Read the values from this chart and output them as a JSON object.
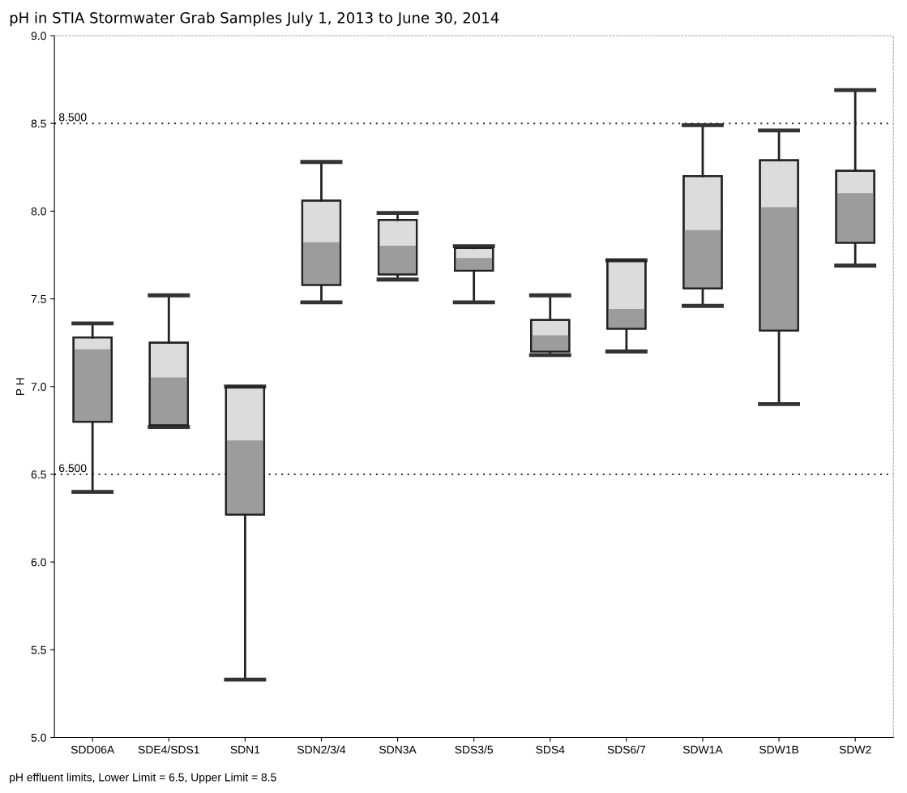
{
  "chart_data": {
    "type": "box",
    "title": "pH in STIA Stormwater Grab Samples July 1, 2013 to June 30, 2014",
    "ylabel": "P H",
    "categories": [
      "SDD06A",
      "SDE4/SDS1",
      "SDN1",
      "SDN2/3/4",
      "SDN3A",
      "SDS3/5",
      "SDS4",
      "SDS6/7",
      "SDW1A",
      "SDW1B",
      "SDW2"
    ],
    "boxes": [
      {
        "low": 6.4,
        "q1": 6.8,
        "median": 7.21,
        "q3": 7.28,
        "high": 7.36
      },
      {
        "low": 6.77,
        "q1": 6.78,
        "median": 7.05,
        "q3": 7.25,
        "high": 7.52
      },
      {
        "low": 5.33,
        "q1": 6.27,
        "median": 6.69,
        "q3": 7.0,
        "high": 7.0
      },
      {
        "low": 7.48,
        "q1": 7.58,
        "median": 7.82,
        "q3": 8.06,
        "high": 8.28
      },
      {
        "low": 7.61,
        "q1": 7.64,
        "median": 7.8,
        "q3": 7.95,
        "high": 7.99
      },
      {
        "low": 7.48,
        "q1": 7.66,
        "median": 7.73,
        "q3": 7.79,
        "high": 7.8
      },
      {
        "low": 7.18,
        "q1": 7.2,
        "median": 7.29,
        "q3": 7.38,
        "high": 7.52
      },
      {
        "low": 7.2,
        "q1": 7.33,
        "median": 7.44,
        "q3": 7.72,
        "high": 7.72
      },
      {
        "low": 7.46,
        "q1": 7.56,
        "median": 7.89,
        "q3": 8.2,
        "high": 8.49
      },
      {
        "low": 6.9,
        "q1": 7.32,
        "median": 8.02,
        "q3": 8.29,
        "high": 8.46
      },
      {
        "low": 7.69,
        "q1": 7.82,
        "median": 8.1,
        "q3": 8.23,
        "high": 8.69
      }
    ],
    "color": "#9c9c9c",
    "ylim": [
      5.0,
      9.0
    ],
    "yticks": [
      {
        "value": 5.0,
        "label": "5.0"
      },
      {
        "value": 5.5,
        "label": "5.5"
      },
      {
        "value": 6.0,
        "label": "6.0"
      },
      {
        "value": 6.5,
        "label": "6.5"
      },
      {
        "value": 7.0,
        "label": "7.0"
      },
      {
        "value": 7.5,
        "label": "7.5"
      },
      {
        "value": 8.0,
        "label": "8.0"
      },
      {
        "value": 8.5,
        "label": "8.5"
      },
      {
        "value": 9.0,
        "label": "9.0"
      }
    ],
    "ref_lines": [
      {
        "axis": "y",
        "value": 6.5,
        "label": "6.500",
        "color": "#222222",
        "line_style": "dotted"
      },
      {
        "axis": "y",
        "value": 8.5,
        "label": "8.500",
        "color": "#222222",
        "line_style": "dotted"
      }
    ],
    "annotations": [
      "pH effluent limits, Lower Limit = 6.5, Upper Limit = 8.5"
    ],
    "grid": false
  }
}
